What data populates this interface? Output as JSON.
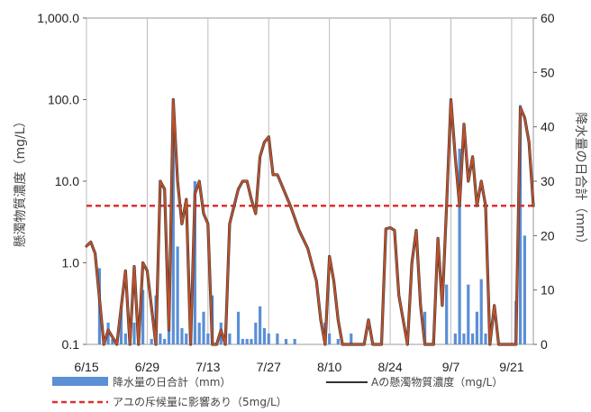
{
  "chart_data": {
    "type": "bar+line",
    "title": "",
    "xlabel": "",
    "ylabel_left": "懸濁物質濃度（mg/L）",
    "ylabel_right": "降水量の日合計（mm）",
    "y_left_scale": "log",
    "y_left_lim": [
      0.1,
      1000
    ],
    "y_left_ticks": [
      "0.1",
      "1.0",
      "10.0",
      "100.0",
      "1,000.0"
    ],
    "y_right_lim": [
      0,
      60
    ],
    "y_right_ticks": [
      "0",
      "10",
      "20",
      "30",
      "40",
      "50",
      "60"
    ],
    "x_ticks": [
      "6/15",
      "6/29",
      "7/13",
      "7/27",
      "8/10",
      "8/24",
      "9/7",
      "9/21"
    ],
    "x_range_days": [
      "6/15",
      "9/26"
    ],
    "grid": "vertical",
    "legend_placement": "bottom",
    "threshold": {
      "label": "アユの斥候量に影響あり（5mg/L）",
      "value": 5,
      "color": "#e03030"
    },
    "series": [
      {
        "name": "降水量の日合計（mm）",
        "kind": "bar",
        "axis": "right",
        "color": "#5b8fd6",
        "x": [
          "6/18",
          "6/19",
          "6/20",
          "6/21",
          "6/23",
          "6/24",
          "6/25",
          "6/26",
          "6/27",
          "6/28",
          "6/30",
          "7/1",
          "7/2",
          "7/3",
          "7/4",
          "7/5",
          "7/6",
          "7/7",
          "7/8",
          "7/9",
          "7/10",
          "7/11",
          "7/12",
          "7/13",
          "7/14",
          "7/16",
          "7/18",
          "7/20",
          "7/21",
          "7/22",
          "7/23",
          "7/24",
          "7/25",
          "7/26",
          "7/27",
          "7/29",
          "7/31",
          "8/2",
          "8/9",
          "8/10",
          "8/12",
          "8/15",
          "9/1",
          "9/3",
          "9/6",
          "9/8",
          "9/9",
          "9/10",
          "9/11",
          "9/12",
          "9/13",
          "9/14",
          "9/15",
          "9/16",
          "9/22",
          "9/23",
          "9/24"
        ],
        "values": [
          14,
          1,
          4,
          1,
          7,
          2,
          2,
          4,
          2,
          10,
          1,
          9,
          2,
          1,
          4,
          39,
          18,
          3,
          2,
          6,
          30,
          4,
          6,
          2,
          9,
          4,
          2,
          6,
          1,
          1,
          1,
          4,
          7,
          3,
          2,
          2,
          1,
          1,
          4,
          2,
          1,
          2,
          6,
          1,
          11,
          2,
          36,
          2,
          11,
          2,
          6,
          12,
          2,
          1,
          8,
          44,
          20
        ]
      },
      {
        "name": "Aの懸濁物質濃度（mg/L）",
        "kind": "line",
        "axis": "left",
        "color": "#c0502a",
        "x": [
          "6/15",
          "6/16",
          "6/17",
          "6/19",
          "6/20",
          "6/22",
          "6/24",
          "6/25",
          "6/26",
          "6/27",
          "6/28",
          "6/29",
          "7/1",
          "7/2",
          "7/3",
          "7/4",
          "7/5",
          "7/6",
          "7/7",
          "7/8",
          "7/9",
          "7/10",
          "7/11",
          "7/12",
          "7/13",
          "7/14",
          "7/15",
          "7/16",
          "7/17",
          "7/18",
          "7/20",
          "7/21",
          "7/22",
          "7/23",
          "7/24",
          "7/25",
          "7/26",
          "7/27",
          "7/28",
          "7/29",
          "7/30",
          "8/1",
          "8/3",
          "8/5",
          "8/7",
          "8/8",
          "8/9",
          "8/10",
          "8/11",
          "8/12",
          "8/13",
          "8/14",
          "8/16",
          "8/17",
          "8/18",
          "8/19",
          "8/20",
          "8/22",
          "8/23",
          "8/24",
          "8/25",
          "8/26",
          "8/28",
          "8/29",
          "8/30",
          "8/31",
          "9/1",
          "9/3",
          "9/4",
          "9/5",
          "9/6",
          "9/7",
          "9/8",
          "9/9",
          "9/10",
          "9/11",
          "9/12",
          "9/13",
          "9/14",
          "9/15",
          "9/16",
          "9/17",
          "9/18",
          "9/19",
          "9/20",
          "9/22",
          "9/23",
          "9/24",
          "9/25",
          "9/26"
        ],
        "values": [
          1.6,
          1.8,
          1.3,
          0.1,
          0.15,
          0.1,
          0.8,
          0.1,
          0.9,
          0.1,
          1.0,
          0.8,
          0.1,
          10,
          8,
          0.15,
          100,
          10,
          3,
          6,
          0.1,
          7,
          10,
          4,
          3,
          0.1,
          0.1,
          0.15,
          0.1,
          3,
          8,
          10,
          10,
          6,
          4,
          20,
          30,
          35,
          12,
          12,
          9,
          5,
          2.5,
          1.5,
          0.6,
          0.2,
          0.1,
          1.2,
          0.6,
          0.2,
          0.1,
          0.1,
          0.1,
          0.1,
          0.1,
          0.2,
          0.1,
          0.1,
          2.6,
          2.7,
          2.5,
          0.4,
          0.1,
          1.0,
          2.5,
          0.3,
          0.1,
          0.1,
          2.0,
          0.3,
          5,
          100,
          20,
          5,
          50,
          10,
          20,
          5,
          10,
          5,
          0.1,
          0.3,
          0.1,
          0.1,
          0.1,
          0.1,
          80,
          60,
          30,
          5
        ]
      }
    ]
  }
}
